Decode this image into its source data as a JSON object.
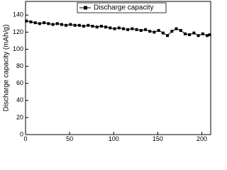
{
  "chart_data": {
    "type": "line",
    "y_label": "Discharge capacity (mAh/g)",
    "x": [
      1,
      6,
      11,
      16,
      21,
      26,
      31,
      36,
      41,
      46,
      51,
      56,
      61,
      66,
      71,
      76,
      81,
      86,
      91,
      96,
      101,
      106,
      111,
      116,
      121,
      126,
      131,
      136,
      141,
      146,
      151,
      156,
      161,
      166,
      171,
      176,
      181,
      186,
      191,
      196,
      201,
      206,
      209
    ],
    "series": [
      {
        "name": "Discharge capacity",
        "color": "#000000",
        "values": [
          133,
          132,
          131,
          130,
          131,
          130,
          129,
          130,
          129,
          128,
          129,
          128,
          128,
          127,
          128,
          127,
          126,
          127,
          126,
          125,
          124,
          125,
          124,
          123,
          124,
          123,
          122,
          123,
          121,
          120,
          122,
          119,
          116,
          121,
          124,
          122,
          118,
          117,
          119,
          116,
          118,
          116,
          117
        ]
      }
    ],
    "xlim": [
      0,
      210
    ],
    "xticks": [
      0,
      50,
      100,
      150,
      200
    ],
    "ylim": [
      0,
      156
    ],
    "yticks": [
      0,
      20,
      40,
      60,
      80,
      100,
      120,
      140
    ],
    "marker": "square",
    "legend": "top"
  }
}
